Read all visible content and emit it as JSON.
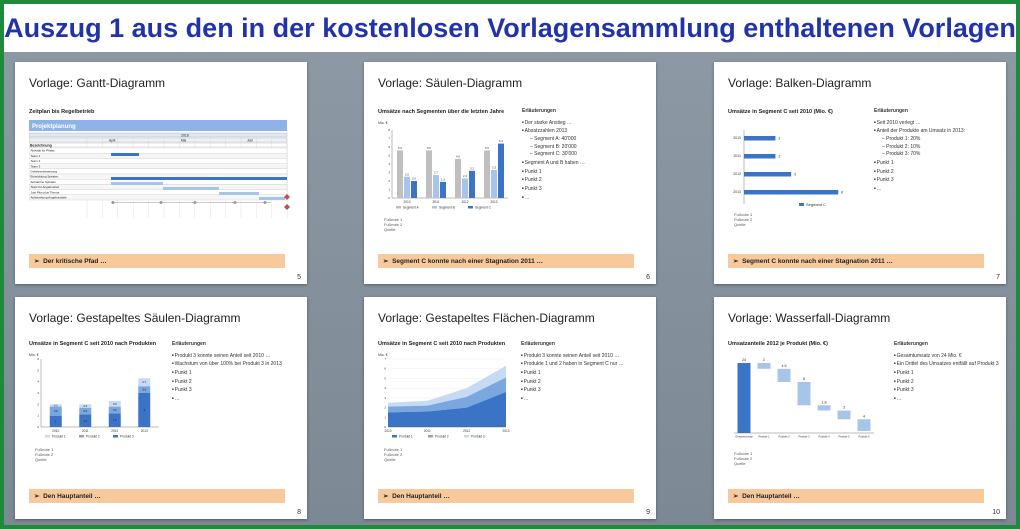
{
  "banner": {
    "title": "Auszug 1 aus den in der kostenlosen Vorlagensammlung enthaltenen Vorlagen"
  },
  "colors": {
    "banner_text": "#2233aa",
    "footer": "#f8c99c",
    "blue": "#3b74c6",
    "light_blue": "#a7c5ea",
    "gray": "#bfbfbf"
  },
  "slides": [
    {
      "title": "Vorlage: Gantt-Diagramm",
      "number": "5",
      "subtitle": "Zeitplan bis Regelbetrieb",
      "footer": "Der kritische Pfad …",
      "gantt": {
        "header": "Projektplanung",
        "year": "2016",
        "months": [
          "April",
          "Mai",
          "Juni"
        ],
        "col_label": "Bezeichnung",
        "rows": [
          "Aktivität für Phase",
          "Team 1",
          "Team 2",
          "Team 3",
          "Gefahrenbewertung",
          "Entwicklung Spiralen",
          "Aufnahme Spiralen",
          "Tests für Angebotsteil",
          "Just Plus plus Thema",
          "Aufbereitung Angebotsteile"
        ]
      }
    },
    {
      "title": "Vorlage: Säulen-Diagramm",
      "number": "6",
      "subtitle": "Umsätze nach Segmenten über die letzten Jahre",
      "footer": "Segment C konnte nach einer Stagnation 2011 …",
      "notes_head": "Erläuterungen",
      "notes": [
        {
          "t": "Der starke Anstieg …",
          "k": "b"
        },
        {
          "t": "Absatzzahlen 2013",
          "k": "b"
        },
        {
          "t": "Segment A: 40'000",
          "k": "d"
        },
        {
          "t": "Segment B: 20'000",
          "k": "d"
        },
        {
          "t": "Segment C: 30'000",
          "k": "d"
        },
        {
          "t": "Segment A und B haben …",
          "k": "b"
        },
        {
          "t": "Punkt 1",
          "k": "b"
        },
        {
          "t": "Punkt 2",
          "k": "b"
        },
        {
          "t": "Punkt 3",
          "k": "b"
        },
        {
          "t": "…",
          "k": "b"
        }
      ],
      "sources": [
        "Fußnote 1",
        "Fußnote 2",
        "Quelle"
      ],
      "unit": "Mio. €",
      "chart_data": {
        "type": "bar",
        "categories": [
          "2010",
          "2011",
          "2012",
          "2013"
        ],
        "series": [
          {
            "name": "Segment A",
            "values": [
              5.6,
              5.6,
              4.6,
              5.6
            ]
          },
          {
            "name": "Segment B",
            "values": [
              2.5,
              2.7,
              2.3,
              3.3
            ]
          },
          {
            "name": "Segment C",
            "values": [
              2.0,
              1.9,
              3.2,
              6.4
            ]
          }
        ],
        "ylim": [
          0,
          8
        ],
        "data_labels": [
          "5.6",
          "2.5",
          "2.0",
          "5.6",
          "2.7",
          "1.9",
          "4.6",
          "2.3",
          "3.2",
          "5.6",
          "3.3",
          "6.4"
        ]
      }
    },
    {
      "title": "Vorlage: Balken-Diagramm",
      "number": "7",
      "subtitle": "Umsätze in Segment C seit 2010 (Mio. €)",
      "footer": "Segment C konnte nach einer Stagnation 2011 …",
      "notes_head": "Erläuterungen",
      "notes": [
        {
          "t": "Seit 2010 verlegt …",
          "k": "b"
        },
        {
          "t": "Anteil der Produkte am Umsatz in 2013:",
          "k": "b"
        },
        {
          "t": "Produkt 1: 20%",
          "k": "d"
        },
        {
          "t": "Produkt 2: 10%",
          "k": "d"
        },
        {
          "t": "Produkt 3: 70%",
          "k": "d"
        },
        {
          "t": "Punkt 1",
          "k": "b"
        },
        {
          "t": "Punkt 2",
          "k": "b"
        },
        {
          "t": "Punkt 3",
          "k": "b"
        },
        {
          "t": "…",
          "k": "b"
        }
      ],
      "sources": [
        "Fußnote 1",
        "Fußnote 2",
        "Quelle"
      ],
      "legend": "Segment C",
      "chart_data": {
        "type": "bar",
        "orientation": "horizontal",
        "categories": [
          "2010",
          "2011",
          "2012",
          "2013"
        ],
        "series": [
          {
            "name": "Segment C",
            "values": [
              2,
              2,
              3,
              6
            ]
          }
        ],
        "xlim": [
          0,
          7
        ]
      }
    },
    {
      "title": "Vorlage: Gestapeltes Säulen-Diagramm",
      "number": "8",
      "subtitle": "Umsätze in Segment C seit 2010 nach Produkten",
      "footer": "Den Hauptanteil …",
      "notes_head": "Erläuterungen",
      "notes": [
        {
          "t": "Produkt 3 konnte seinen Anteil seit 2010 …",
          "k": "b"
        },
        {
          "t": "Wachstum von über 100% bei Produkt 3 in 2013",
          "k": "b"
        },
        {
          "t": "Punkt 1",
          "k": "b"
        },
        {
          "t": "Punkt 2",
          "k": "b"
        },
        {
          "t": "Punkt 3",
          "k": "b"
        },
        {
          "t": "…",
          "k": "b"
        }
      ],
      "sources": [
        "Fußnote 1",
        "Fußnote 2",
        "Quelle"
      ],
      "unit": "Mio. €",
      "chart_data": {
        "type": "bar",
        "stacked": true,
        "categories": [
          "2010",
          "2011",
          "2012",
          "2013"
        ],
        "series": [
          {
            "name": "Produkt 1",
            "values": [
              0.2,
              0.3,
              0.5,
              0.7
            ]
          },
          {
            "name": "Produkt 2",
            "values": [
              0.8,
              0.6,
              0.6,
              0.6
            ]
          },
          {
            "name": "Produkt 3",
            "values": [
              1.0,
              1.1,
              1.2,
              3.0
            ]
          }
        ],
        "ylim": [
          0,
          6
        ]
      }
    },
    {
      "title": "Vorlage: Gestapeltes Flächen-Diagramm",
      "number": "9",
      "subtitle": "Umsätze in Segment C seit 2010 nach Produkten",
      "footer": "Den Hauptanteil …",
      "notes_head": "Erläuterungen",
      "notes": [
        {
          "t": "Produkt 3 konnte seinen Anteil seit 2010 …",
          "k": "b"
        },
        {
          "t": "Produkte 1 und 2 haben in Segment C nur …",
          "k": "b"
        },
        {
          "t": "Punkt 1",
          "k": "b"
        },
        {
          "t": "Punkt 2",
          "k": "b"
        },
        {
          "t": "Punkt 3",
          "k": "b"
        },
        {
          "t": "…",
          "k": "b"
        }
      ],
      "sources": [
        "Fußnote 1",
        "Fußnote 2",
        "Quelle"
      ],
      "unit": "Mio. €",
      "chart_data": {
        "type": "area",
        "stacked": true,
        "x": [
          "2010",
          "2011",
          "2012",
          "2013"
        ],
        "series": [
          {
            "name": "Produkt 1",
            "values": [
              1.5,
              1.6,
              2.0,
              3.6
            ]
          },
          {
            "name": "Produkt 2",
            "values": [
              0.6,
              0.6,
              1.1,
              1.5
            ]
          },
          {
            "name": "Produkt 3",
            "values": [
              0.4,
              0.5,
              0.9,
              1.2
            ]
          }
        ],
        "ylim": [
          0,
          7
        ]
      }
    },
    {
      "title": "Vorlage: Wasserfall-Diagramm",
      "number": "10",
      "subtitle": "Umsatzanteile 2012 je Produkt (Mio. €)",
      "footer": "Den Hauptanteil …",
      "notes_head": "Erläuterungen",
      "notes": [
        {
          "t": "Gesamtumsatz von 24 Mio. €",
          "k": "b"
        },
        {
          "t": "Ein Drittel des Umsatzes entfällt auf Produkt 3",
          "k": "b"
        },
        {
          "t": "Punkt 1",
          "k": "b"
        },
        {
          "t": "Punkt 2",
          "k": "b"
        },
        {
          "t": "Punkt 3",
          "k": "b"
        },
        {
          "t": "…",
          "k": "b"
        }
      ],
      "sources": [
        "Fußnote 1",
        "Fußnote 2",
        "Quelle"
      ],
      "chart_data": {
        "type": "bar",
        "waterfall": true,
        "categories": [
          "Gesamtumsatz",
          "Produkt 1",
          "Produkt 2",
          "Produkt 3",
          "Produkt 4",
          "Produkt 5",
          "Produkt 6"
        ],
        "values": [
          24,
          2,
          4.5,
          8,
          1.8,
          3,
          4
        ],
        "labels": [
          "24",
          "2",
          "4.5",
          "8",
          "1.8",
          "3",
          "4"
        ],
        "ylim": [
          0,
          24
        ]
      }
    }
  ]
}
